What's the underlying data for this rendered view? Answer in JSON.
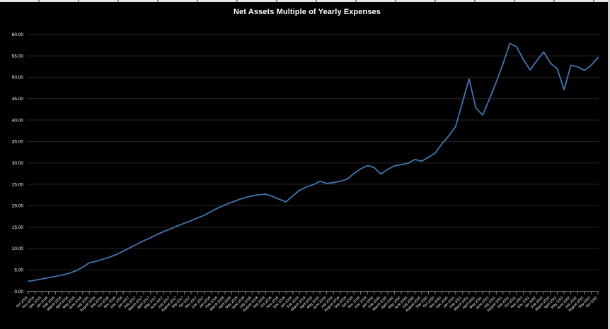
{
  "window": {
    "top_edge": "spreadsheet-column-boundaries",
    "right_edge": "vertical-scrollbar"
  },
  "chart_data": {
    "type": "line",
    "title": "Net Assets Multiple of Yearly Expenses",
    "xlabel": "",
    "ylabel": "",
    "ylim": [
      0,
      60
    ],
    "ytick_step": 5,
    "y_ticks": [
      "0.00",
      "5.00",
      "10.00",
      "15.00",
      "20.00",
      "25.00",
      "30.00",
      "35.00",
      "40.00",
      "45.00",
      "50.00",
      "55.00",
      "60.00"
    ],
    "grid": "horizontal",
    "legend": "none",
    "series_name": "Net Assets Multiple of Yearly Expenses",
    "categories": [
      "Oct 2015",
      "Nov 2015",
      "Dec 2015",
      "Jan 2016",
      "Feb 2016",
      "March 2016",
      "April 2016",
      "May 2016",
      "June 2016",
      "July 2016",
      "August 2016",
      "Sep 2016",
      "Oct 2016",
      "Nov 2016",
      "Dec 2016",
      "Jan 2017",
      "Feb 2017",
      "March 2017",
      "April 2017",
      "May 2017",
      "June 2017",
      "July 2017",
      "August 2017",
      "Sep 2017",
      "Oct 2017",
      "Nov 2017",
      "Dec 2017",
      "Jan 2018",
      "Feb 2018",
      "March 2018",
      "April 2018",
      "May 2018",
      "June 2018",
      "July 2018",
      "August 2018",
      "Sep 2018",
      "Oct 2018",
      "Nov 2018",
      "Dec 2018",
      "Jan 2019",
      "Feb 2019",
      "March 2019",
      "April 2019",
      "May 2019",
      "June 2019",
      "July 2019",
      "August 2019",
      "Sep 2019",
      "Oct 2019",
      "Nov 2019",
      "Dec 2019",
      "Jan 2020",
      "Feb 2020",
      "March 2020",
      "April 2020",
      "May 2020",
      "June 2020",
      "July 2020",
      "August 2020",
      "Sep 2020",
      "Oct 2020",
      "Nov 2020",
      "Dec 2020",
      "Jan 2021",
      "Feb 2021",
      "March 2021",
      "April 2021",
      "May 2021",
      "June 2021",
      "July 2021",
      "August 2021",
      "Sep 2021",
      "Oct 2021",
      "Nov 2021",
      "Dec 2021",
      "Jan 2022",
      "Feb 2022",
      "March 2022",
      "April 2022",
      "May 2022",
      "June 2022",
      "July 2022",
      "August 2022",
      "Sep 2022",
      "Oct 2022"
    ],
    "values": [
      2.35,
      2.6,
      2.9,
      3.2,
      3.5,
      3.8,
      4.2,
      4.8,
      5.6,
      6.7,
      7.0,
      7.5,
      8.0,
      8.6,
      9.4,
      10.2,
      11.0,
      11.8,
      12.5,
      13.3,
      14.0,
      14.6,
      15.3,
      15.9,
      16.5,
      17.2,
      17.8,
      18.7,
      19.5,
      20.2,
      20.8,
      21.4,
      21.9,
      22.3,
      22.55,
      22.7,
      22.2,
      21.5,
      20.9,
      22.3,
      23.6,
      24.4,
      24.9,
      25.7,
      25.2,
      25.4,
      25.7,
      26.2,
      27.5,
      28.6,
      29.4,
      28.9,
      27.4,
      28.5,
      29.3,
      29.6,
      29.9,
      30.8,
      30.4,
      31.3,
      32.3,
      34.5,
      36.3,
      38.5,
      44.0,
      49.6,
      42.8,
      41.2,
      44.9,
      48.9,
      53.1,
      57.9,
      57.1,
      54.1,
      51.7,
      53.9,
      55.9,
      53.3,
      52.0,
      47.1,
      52.8,
      52.4,
      51.6,
      52.8,
      54.6
    ],
    "colors": {
      "background": "#000000",
      "line": "#4374b0",
      "gridline": "#262626",
      "axis": "#969696",
      "text": "#ffffff"
    }
  }
}
